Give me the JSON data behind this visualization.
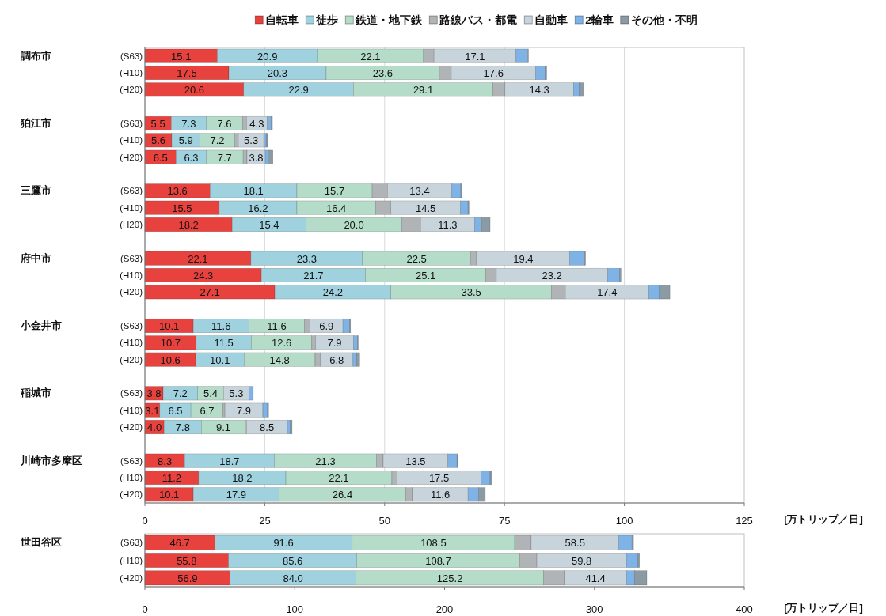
{
  "chart_data": [
    {
      "type": "bar",
      "orientation": "horizontal",
      "stacked": true,
      "xlabel": "[万トリップ／日]",
      "xlim": [
        0,
        125
      ],
      "xticks": [
        0,
        25,
        50,
        75,
        100,
        125
      ],
      "grid": "x",
      "legend": "top",
      "categories": [
        "(S63)",
        "(H10)",
        "(H20)",
        "(S63)",
        "(H10)",
        "(H20)",
        "(S63)",
        "(H10)",
        "(H20)",
        "(S63)",
        "(H10)",
        "(H20)",
        "(S63)",
        "(H10)",
        "(H20)",
        "(S63)",
        "(H10)",
        "(H20)",
        "(S63)",
        "(H10)",
        "(H20)"
      ],
      "annotations": [
        "調布市",
        "狛江市",
        "三鷹市",
        "府中市",
        "小金井市",
        "稲城市",
        "川崎市多摩区"
      ],
      "series": [
        {
          "name": "自転車",
          "color": "#e8423f",
          "values": [
            15.1,
            17.5,
            20.6,
            5.5,
            5.6,
            6.5,
            13.6,
            15.5,
            18.2,
            22.1,
            24.3,
            27.1,
            10.1,
            10.7,
            10.6,
            3.8,
            3.1,
            4.0,
            8.3,
            11.2,
            10.1
          ],
          "value_labels": [
            "15.1",
            "17.5",
            "20.6",
            "5.5",
            "5.6",
            "6.5",
            "13.6",
            "15.5",
            "18.2",
            "22.1",
            "24.3",
            "27.1",
            "10.1",
            "10.7",
            "10.6",
            "3.8",
            "3.1",
            "4.0",
            "8.3",
            "11.2",
            "10.1"
          ]
        },
        {
          "name": "徒歩",
          "color": "#9fd1de",
          "values": [
            20.9,
            20.3,
            22.9,
            7.3,
            5.9,
            6.3,
            18.1,
            16.2,
            15.4,
            23.3,
            21.7,
            24.2,
            11.6,
            11.5,
            10.1,
            7.2,
            6.5,
            7.8,
            18.7,
            18.2,
            17.9
          ],
          "value_labels": [
            "20.9",
            "20.3",
            "22.9",
            "7.3",
            "5.9",
            "6.3",
            "18.1",
            "16.2",
            "15.4",
            "23.3",
            "21.7",
            "24.2",
            "11.6",
            "11.5",
            "10.1",
            "7.2",
            "6.5",
            "7.8",
            "18.7",
            "18.2",
            "17.9"
          ]
        },
        {
          "name": "鉄道・地下鉄",
          "color": "#b4dcc8",
          "values": [
            22.1,
            23.6,
            29.1,
            7.6,
            7.2,
            7.7,
            15.7,
            16.4,
            20.0,
            22.5,
            25.1,
            33.5,
            11.6,
            12.6,
            14.8,
            5.4,
            6.7,
            9.1,
            21.3,
            22.1,
            26.4
          ],
          "value_labels": [
            "22.1",
            "23.6",
            "29.1",
            "7.6",
            "7.2",
            "7.7",
            "15.7",
            "16.4",
            "20.0",
            "22.5",
            "25.1",
            "33.5",
            "11.6",
            "12.6",
            "14.8",
            "5.4",
            "6.7",
            "9.1",
            "21.3",
            "22.1",
            "26.4"
          ]
        },
        {
          "name": "路線バス・都電",
          "color": "#b0b4b6",
          "values": [
            2.2,
            2.5,
            2.5,
            0.8,
            0.8,
            0.8,
            3.2,
            3.2,
            3.9,
            1.3,
            2.2,
            2.9,
            1.1,
            0.8,
            1.1,
            null,
            0.4,
            0.3,
            1.4,
            1.1,
            1.4
          ]
        },
        {
          "name": "自動車",
          "color": "#c8d4dc",
          "values": [
            17.1,
            17.6,
            14.3,
            4.3,
            5.3,
            3.8,
            13.4,
            14.5,
            11.3,
            19.4,
            23.2,
            17.4,
            6.9,
            7.9,
            6.8,
            5.3,
            7.9,
            8.5,
            13.5,
            17.5,
            11.6
          ],
          "value_labels": [
            "17.1",
            "17.6",
            "14.3",
            "4.3",
            "5.3",
            "3.8",
            "13.4",
            "14.5",
            "11.3",
            "19.4",
            "23.2",
            "17.4",
            "6.9",
            "7.9",
            "6.8",
            "5.3",
            "7.9",
            "8.5",
            "13.5",
            "17.5",
            "11.6"
          ]
        },
        {
          "name": "2輪車",
          "color": "#7fb2e5",
          "values": [
            2.3,
            2.0,
            1.2,
            0.8,
            0.5,
            0.6,
            1.9,
            1.6,
            1.4,
            3.1,
            2.5,
            2.2,
            1.4,
            0.8,
            0.8,
            0.8,
            1.0,
            0.6,
            1.9,
            1.9,
            2.2
          ]
        },
        {
          "name": "その他・不明",
          "color": "#8c9aa4",
          "values": [
            0.3,
            0.3,
            1.0,
            0.3,
            0.3,
            1.0,
            0.2,
            0.2,
            1.8,
            0.2,
            0.3,
            2.2,
            0.2,
            0.2,
            0.6,
            0.1,
            0.2,
            0.4,
            0.1,
            0.3,
            1.4
          ]
        }
      ]
    },
    {
      "type": "bar",
      "orientation": "horizontal",
      "stacked": true,
      "xlabel": "[万トリップ／日]",
      "xlim": [
        0,
        400
      ],
      "xticks": [
        0,
        100,
        200,
        300,
        400
      ],
      "categories": [
        "(S63)",
        "(H10)",
        "(H20)"
      ],
      "annotations": [
        "世田谷区"
      ],
      "series": [
        {
          "color": "#e8423f",
          "values": [
            46.7,
            55.8,
            56.9
          ],
          "value_labels": [
            "46.7",
            "55.8",
            "56.9"
          ]
        },
        {
          "color": "#9fd1de",
          "values": [
            91.6,
            85.6,
            84.0
          ],
          "value_labels": [
            "91.6",
            "85.6",
            "84.0"
          ]
        },
        {
          "color": "#b4dcc8",
          "values": [
            108.5,
            108.7,
            125.2
          ],
          "value_labels": [
            "108.5",
            "108.7",
            "125.2"
          ]
        },
        {
          "color": "#b0b4b6",
          "values": [
            11.0,
            11.5,
            13.9
          ]
        },
        {
          "color": "#c8d4dc",
          "values": [
            58.5,
            59.8,
            41.4
          ],
          "value_labels": [
            "58.5",
            "59.8",
            "41.4"
          ]
        },
        {
          "color": "#7fb2e5",
          "values": [
            8.8,
            7.7,
            5.5
          ]
        },
        {
          "color": "#8c9aa4",
          "values": [
            1.0,
            1.0,
            8.1
          ]
        }
      ]
    }
  ]
}
